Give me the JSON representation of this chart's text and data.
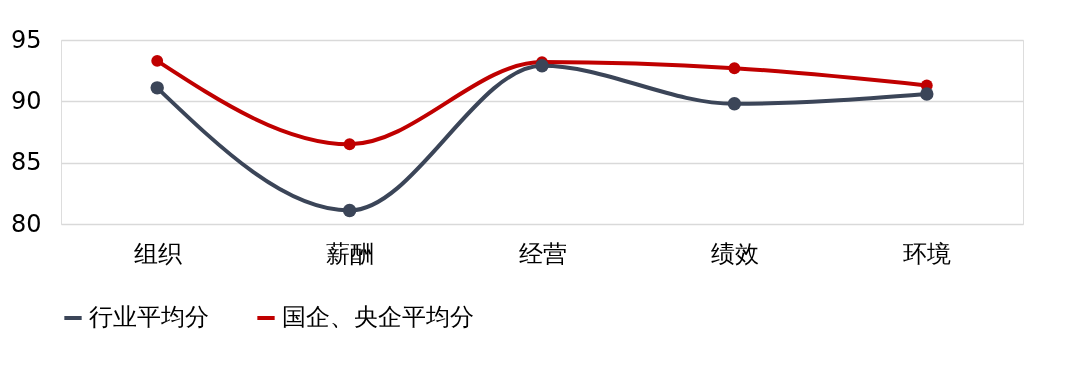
{
  "chart_data": {
    "type": "line",
    "categories": [
      "组织",
      "薪酬",
      "经营",
      "绩效",
      "环境"
    ],
    "series": [
      {
        "name": "行业平均分",
        "color": "#3b4558",
        "values": [
          91.1,
          81.1,
          92.9,
          89.8,
          90.6
        ]
      },
      {
        "name": "国企、央企平均分",
        "color": "#c00000",
        "values": [
          93.3,
          86.5,
          93.2,
          92.7,
          91.3
        ]
      }
    ],
    "ylim": [
      80,
      95
    ],
    "yticks": [
      80,
      85,
      90,
      95
    ],
    "grid": "y",
    "legend": "bottom",
    "marker": "circle",
    "line_style": "solid"
  }
}
